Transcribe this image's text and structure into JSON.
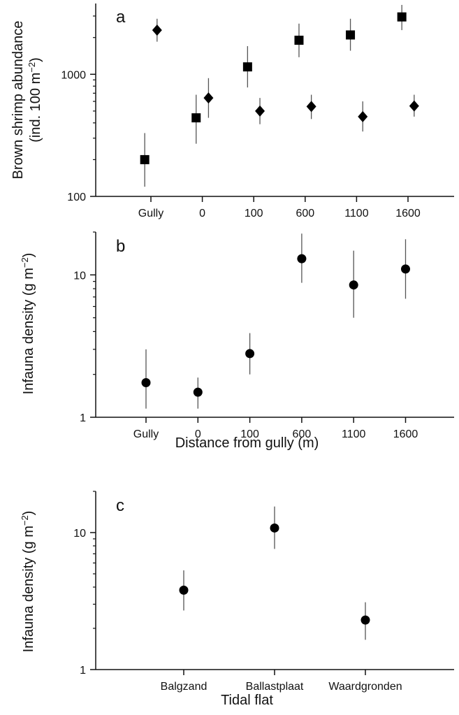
{
  "chart_data": [
    {
      "panel": "a",
      "type": "scatter",
      "ylabel_line1": "Brown shrimp abundance",
      "ylabel_line2": "(ind. 100 m−2)",
      "ylabel_line2_base": "(ind. 100 m",
      "ylabel_line2_sup": "−2",
      "ylabel_line2_close": ")",
      "xlabel": "",
      "yscale": "log",
      "ylim": [
        100,
        3800
      ],
      "yticks": [
        100,
        1000
      ],
      "ytick_labels": [
        "100",
        "1000"
      ],
      "categories": [
        "Gully",
        "0",
        "100",
        "600",
        "1100",
        "1600"
      ],
      "series": [
        {
          "marker": "square",
          "offset": -0.12,
          "values": [
            200,
            440,
            1150,
            1900,
            2100,
            2950
          ],
          "err_low": [
            120,
            270,
            780,
            1380,
            1560,
            2300
          ],
          "err_high": [
            330,
            680,
            1700,
            2600,
            2850,
            3700
          ]
        },
        {
          "marker": "diamond",
          "offset": 0.12,
          "values": [
            2300,
            640,
            500,
            545,
            450,
            550
          ],
          "err_low": [
            1850,
            440,
            390,
            430,
            340,
            450
          ],
          "err_high": [
            2850,
            930,
            640,
            680,
            600,
            680
          ]
        }
      ]
    },
    {
      "panel": "b",
      "type": "scatter",
      "ylabel": "Infauna density (g m−2)",
      "ylabel_base": "Infauna density (g m",
      "ylabel_sup": "−2",
      "ylabel_close": ")",
      "xlabel": "Distance from gully (m)",
      "yscale": "log",
      "ylim": [
        1,
        20
      ],
      "yticks": [
        1,
        10
      ],
      "ytick_labels": [
        "1",
        "10"
      ],
      "categories": [
        "Gully",
        "0",
        "100",
        "600",
        "1100",
        "1600"
      ],
      "series": [
        {
          "marker": "circle",
          "offset": 0,
          "values": [
            1.75,
            1.5,
            2.8,
            13,
            8.5,
            11
          ],
          "err_low": [
            1.15,
            1.15,
            2.0,
            8.8,
            5.0,
            6.8
          ],
          "err_high": [
            3.0,
            1.9,
            3.9,
            19.5,
            14.8,
            17.8
          ]
        }
      ]
    },
    {
      "panel": "c",
      "type": "scatter",
      "ylabel": "Infauna density (g m−2)",
      "ylabel_base": "Infauna density (g m",
      "ylabel_sup": "−2",
      "ylabel_close": ")",
      "xlabel": "Tidal flat",
      "yscale": "log",
      "ylim": [
        1,
        20
      ],
      "yticks": [
        1,
        10
      ],
      "ytick_labels": [
        "1",
        "10"
      ],
      "categories": [
        "Balgzand",
        "Ballastplaat",
        "Waardgronden"
      ],
      "series": [
        {
          "marker": "circle",
          "offset": 0,
          "values": [
            3.8,
            10.8,
            2.3
          ],
          "err_low": [
            2.7,
            7.6,
            1.65
          ],
          "err_high": [
            5.3,
            15.5,
            3.1
          ]
        }
      ]
    }
  ]
}
